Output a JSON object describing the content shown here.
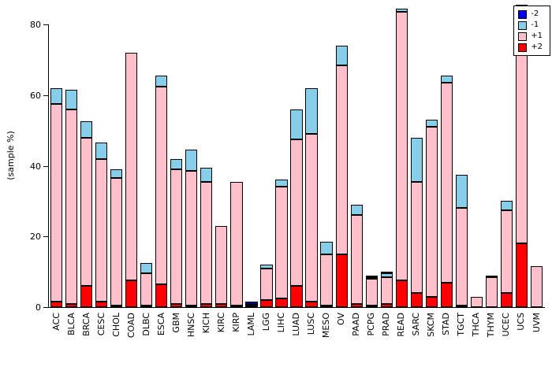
{
  "chart_data": {
    "type": "bar",
    "stacked": true,
    "title": "",
    "xlabel": "",
    "ylabel": "(sample %)",
    "ylim": [
      0,
      86
    ],
    "yticks": [
      0,
      20,
      40,
      60,
      80
    ],
    "grid": false,
    "legend_position": "top-right",
    "legend_entries_top_to_bottom": [
      "-2",
      "-1",
      "+1",
      "+2"
    ],
    "stack_order_bottom_to_top": [
      "+2",
      "+1",
      "-1",
      "-2"
    ],
    "categories": [
      "ACC",
      "BLCA",
      "BRCA",
      "CESC",
      "CHOL",
      "COAD",
      "DLBC",
      "ESCA",
      "GBM",
      "HNSC",
      "KICH",
      "KIRC",
      "KIRP",
      "LAML",
      "LGG",
      "LIHC",
      "LUAD",
      "LUSC",
      "MESO",
      "OV",
      "PAAD",
      "PCPG",
      "PRAD",
      "READ",
      "SARC",
      "SKCM",
      "STAD",
      "TGCT",
      "THCA",
      "THYM",
      "UCEC",
      "UCS",
      "UVM"
    ],
    "series": [
      {
        "name": "+2",
        "color": "#FF0000",
        "values": [
          1.5,
          1,
          6,
          1.5,
          0.5,
          7.5,
          0.5,
          6.5,
          1,
          0.5,
          1,
          1,
          0.5,
          0.5,
          2,
          2.5,
          6,
          1.5,
          0.5,
          15,
          1,
          0.5,
          1,
          7.5,
          4,
          3,
          7,
          0.5,
          0,
          0,
          4,
          18,
          0
        ]
      },
      {
        "name": "+1",
        "color": "#FFC0CB",
        "values": [
          56,
          55,
          42,
          40.5,
          36,
          64.5,
          9,
          56,
          38,
          38,
          34.5,
          22,
          35,
          0.5,
          9,
          31.5,
          41.5,
          47.5,
          14.5,
          53.5,
          25,
          7.5,
          7.5,
          76,
          31.5,
          48,
          56.5,
          27.5,
          3,
          8.5,
          23.5,
          62,
          11.5
        ]
      },
      {
        "name": "-1",
        "color": "#87CEEB",
        "values": [
          4.5,
          5.5,
          4.5,
          4.5,
          2.5,
          0,
          3,
          3,
          3,
          6,
          4,
          0,
          0,
          0,
          1,
          2,
          8.5,
          13,
          3.5,
          5.5,
          3,
          0.5,
          1,
          1,
          12.5,
          2,
          2,
          9.5,
          0,
          0.5,
          2.5,
          4,
          0
        ]
      },
      {
        "name": "-2",
        "color": "#0000EE",
        "values": [
          0,
          0,
          0,
          0,
          0,
          0,
          0,
          0,
          0,
          0,
          0,
          0,
          0,
          0.5,
          0,
          0,
          0,
          0,
          0,
          0,
          0,
          0.5,
          0.5,
          0,
          0,
          0,
          0,
          0,
          0,
          0,
          0,
          1.5,
          0
        ]
      }
    ]
  }
}
